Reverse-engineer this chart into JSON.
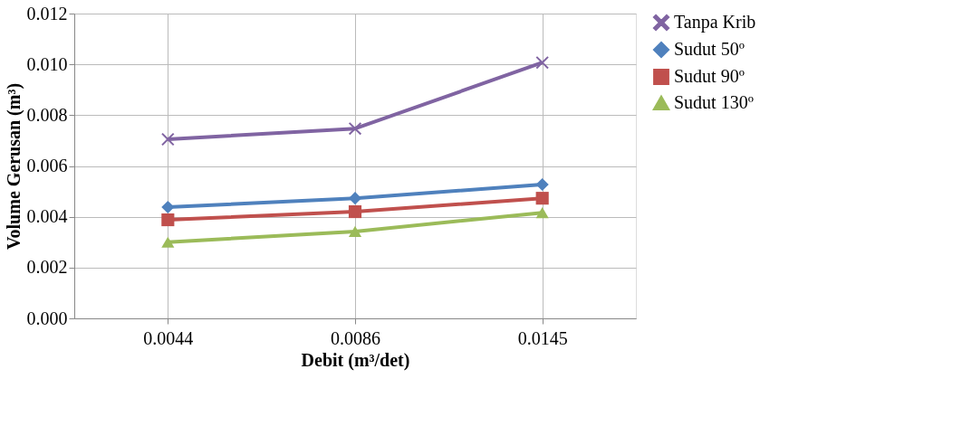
{
  "chart_data": {
    "type": "line",
    "xlabel": "Debit (m³/det)",
    "ylabel": "Volume Gerusan (m³)",
    "categories": [
      "0.0044",
      "0.0086",
      "0.0145"
    ],
    "series": [
      {
        "name": "Tanpa Krib",
        "color": "#8064a2",
        "marker": "cross",
        "values": [
          0.00705,
          0.00747,
          0.01007
        ]
      },
      {
        "name": "Sudut 50º",
        "color": "#4f81bd",
        "marker": "diamond",
        "values": [
          0.00438,
          0.00473,
          0.00527
        ]
      },
      {
        "name": "Sudut 90º",
        "color": "#c0504d",
        "marker": "square",
        "values": [
          0.00388,
          0.0042,
          0.00473
        ]
      },
      {
        "name": "Sudut 130º",
        "color": "#9bbb59",
        "marker": "triangle",
        "values": [
          0.003,
          0.00342,
          0.00416
        ]
      }
    ],
    "ylim": [
      0,
      0.012
    ],
    "yticks": [
      {
        "value": 0,
        "label": "0.000"
      },
      0.002,
      0.004,
      0.006,
      0.008,
      {
        "value": 0.01,
        "label": "0.010"
      },
      0.012
    ],
    "grid": true,
    "legend": "right",
    "line_style": "solid"
  }
}
